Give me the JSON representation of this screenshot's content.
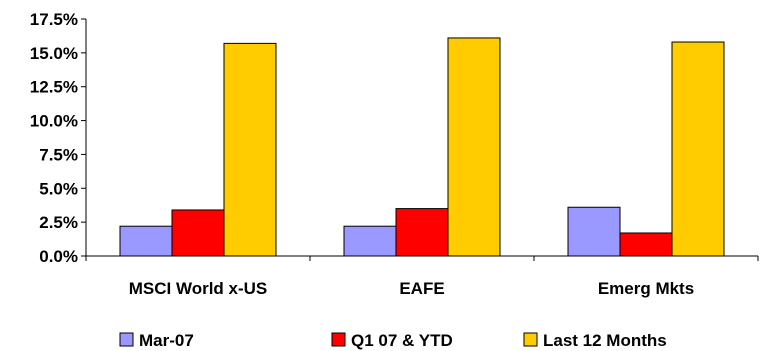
{
  "chart_data": {
    "type": "bar",
    "title": "",
    "xlabel": "",
    "ylabel": "",
    "categories": [
      "MSCI World x-US",
      "EAFE",
      "Emerg Mkts"
    ],
    "series": [
      {
        "name": "Mar-07",
        "values": [
          2.2,
          2.2,
          3.6
        ],
        "color": "#9999ff"
      },
      {
        "name": "Q1 07 & YTD",
        "values": [
          3.4,
          3.5,
          1.7
        ],
        "color": "#ff0000"
      },
      {
        "name": "Last 12 Months",
        "values": [
          15.7,
          16.1,
          15.8
        ],
        "color": "#ffcc00"
      }
    ],
    "ylim": [
      0,
      17.5
    ],
    "yticks": [
      0,
      2.5,
      5,
      7.5,
      10,
      12.5,
      15,
      17.5
    ],
    "ytick_labels": [
      "0.0%",
      "2.5%",
      "5.0%",
      "7.5%",
      "10.0%",
      "12.5%",
      "15.0%",
      "17.5%"
    ],
    "grid": false,
    "legend_position": "bottom"
  }
}
